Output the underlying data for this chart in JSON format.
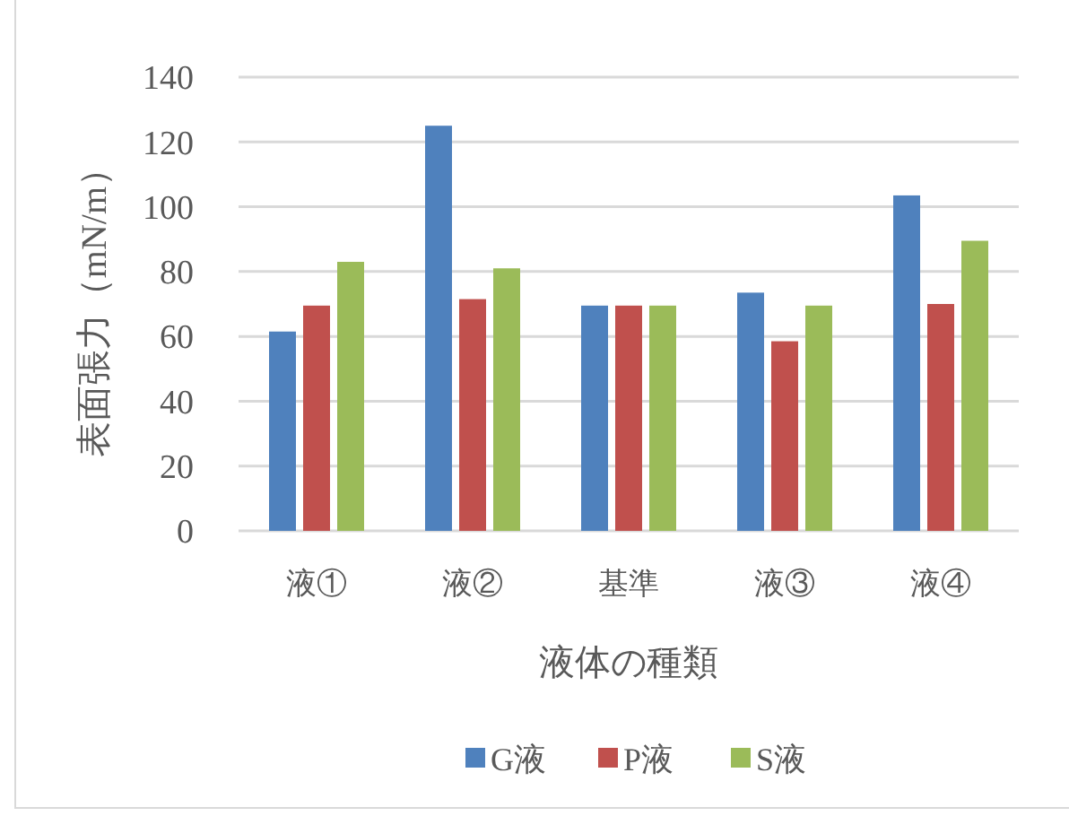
{
  "chart_data": {
    "type": "bar",
    "categories": [
      "液①",
      "液②",
      "基準",
      "液③",
      "液④"
    ],
    "series": [
      {
        "name": "G液",
        "color": "#4f81bd",
        "values": [
          61.5,
          125,
          69.5,
          73.5,
          103.5
        ]
      },
      {
        "name": "P液",
        "color": "#c0504d",
        "values": [
          69.5,
          71.5,
          69.5,
          58.5,
          70
        ]
      },
      {
        "name": "S液",
        "color": "#9bbb59",
        "values": [
          83,
          81,
          69.5,
          69.5,
          89.5
        ]
      }
    ],
    "xlabel": "液体の種類",
    "ylabel": "表面張力（mN/m）",
    "ylim": [
      0,
      140
    ],
    "yticks": [
      0,
      20,
      40,
      60,
      80,
      100,
      120,
      140
    ],
    "grid": "y",
    "legend": "bottom"
  }
}
